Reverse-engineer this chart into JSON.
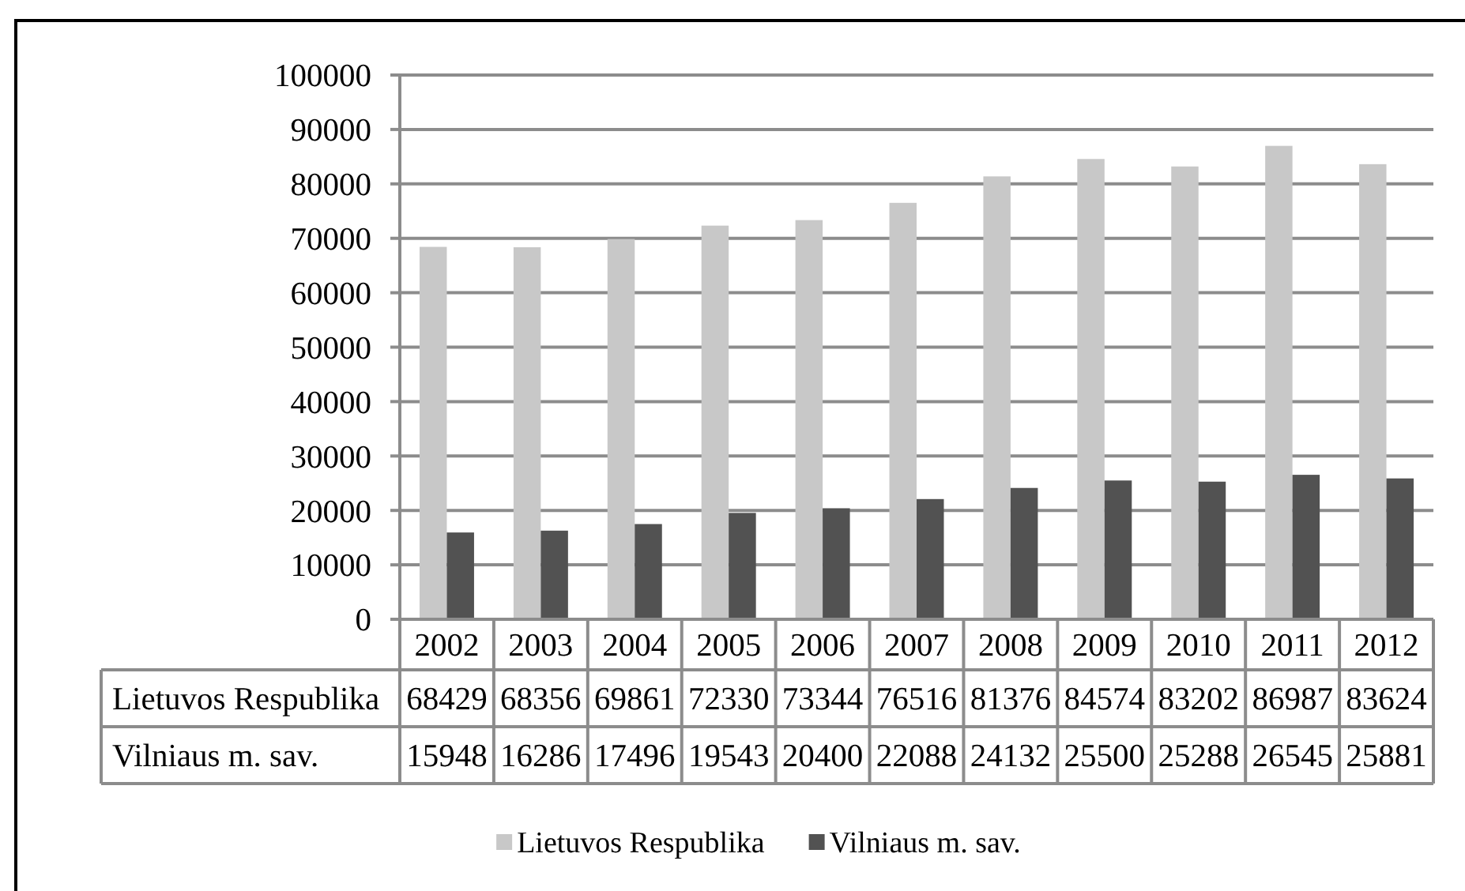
{
  "chart_data": {
    "type": "bar",
    "categories": [
      "2002",
      "2003",
      "2004",
      "2005",
      "2006",
      "2007",
      "2008",
      "2009",
      "2010",
      "2011",
      "2012"
    ],
    "series": [
      {
        "name": "Lietuvos Respublika",
        "color": "#c8c8c8",
        "values": [
          68429,
          68356,
          69861,
          72330,
          73344,
          76516,
          81376,
          84574,
          83202,
          86987,
          83624
        ]
      },
      {
        "name": "Vilniaus m. sav.",
        "color": "#525252",
        "values": [
          15948,
          16286,
          17496,
          19543,
          20400,
          22088,
          24132,
          25500,
          25288,
          26545,
          25881
        ]
      }
    ],
    "ylim": [
      0,
      100000
    ],
    "yticks": [
      0,
      10000,
      20000,
      30000,
      40000,
      50000,
      60000,
      70000,
      80000,
      90000,
      100000
    ],
    "grid": "y",
    "legend": "bottom",
    "data_labels": true
  }
}
